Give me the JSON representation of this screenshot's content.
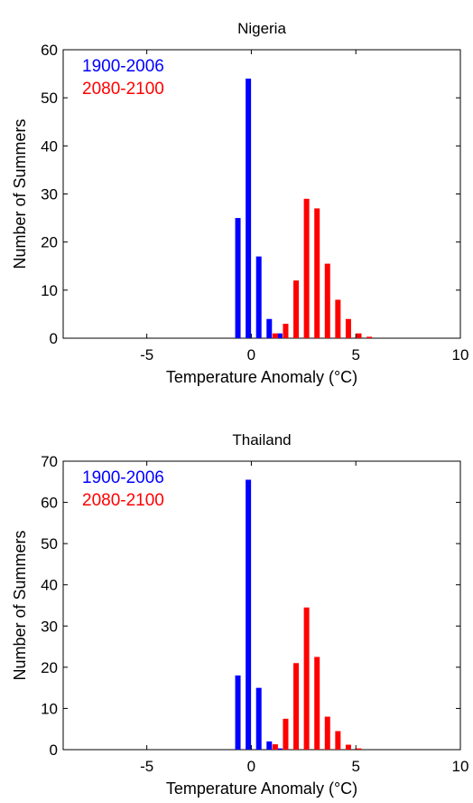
{
  "chart_data": [
    {
      "type": "bar",
      "title": "Nigeria",
      "xlabel": "Temperature Anomaly (°C)",
      "ylabel": "Number of Summers",
      "xlim": [
        -9,
        10
      ],
      "ylim": [
        0,
        60
      ],
      "xticks": [
        -5,
        0,
        5,
        10
      ],
      "yticks": [
        0,
        10,
        20,
        30,
        40,
        50,
        60
      ],
      "grid": false,
      "legend_position": "top-left",
      "series": [
        {
          "name": "1900-2006",
          "color": "#0000ff",
          "x": [
            -0.5,
            0,
            0.5,
            1,
            1.5
          ],
          "values": [
            25,
            54,
            17,
            4,
            1
          ]
        },
        {
          "name": "2080-2100",
          "color": "#ff0000",
          "x": [
            1,
            1.5,
            2,
            2.5,
            3,
            3.5,
            4,
            4.5,
            5,
            5.5
          ],
          "values": [
            1,
            3,
            12,
            29,
            27,
            15.5,
            8,
            4,
            1,
            0.3
          ]
        }
      ]
    },
    {
      "type": "bar",
      "title": "Thailand",
      "xlabel": "Temperature Anomaly (°C)",
      "ylabel": "Number of Summers",
      "xlim": [
        -9,
        10
      ],
      "ylim": [
        0,
        70
      ],
      "xticks": [
        -5,
        0,
        5,
        10
      ],
      "yticks": [
        0,
        10,
        20,
        30,
        40,
        50,
        60,
        70
      ],
      "grid": false,
      "legend_position": "top-left",
      "series": [
        {
          "name": "1900-2006",
          "color": "#0000ff",
          "x": [
            -0.5,
            0,
            0.5,
            1,
            1.5
          ],
          "values": [
            18,
            65.5,
            15,
            2,
            0.3
          ]
        },
        {
          "name": "2080-2100",
          "color": "#ff0000",
          "x": [
            1,
            1.5,
            2,
            2.5,
            3,
            3.5,
            4,
            4.5,
            5
          ],
          "values": [
            1.3,
            7.5,
            21,
            34.5,
            22.5,
            8,
            4.5,
            1.2,
            0.3
          ]
        }
      ]
    }
  ]
}
